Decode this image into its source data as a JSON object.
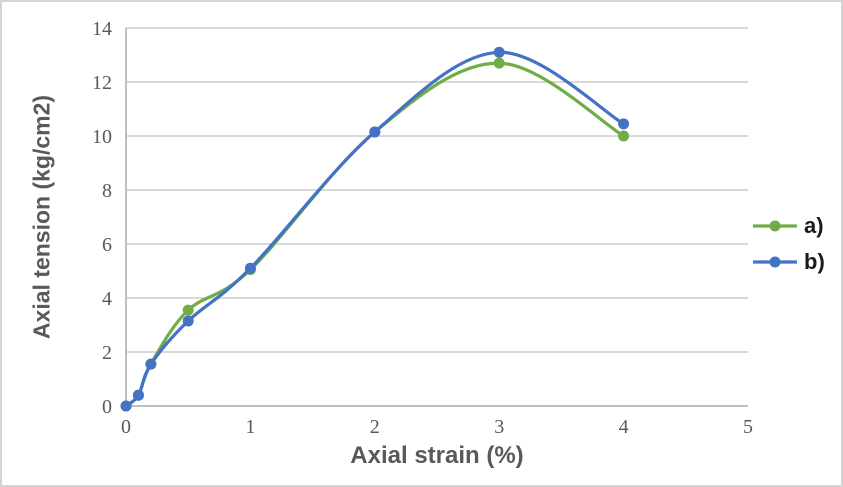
{
  "figure": {
    "background": "#ffffff",
    "border_color": "#d4d4d4"
  },
  "chart_data": {
    "type": "line",
    "x": [
      0,
      0.1,
      0.2,
      0.5,
      1,
      2,
      3,
      4
    ],
    "series": [
      {
        "name": "a)",
        "color": "#70AD47",
        "values": [
          0,
          0.4,
          1.55,
          3.55,
          5.05,
          10.15,
          12.7,
          10.0
        ]
      },
      {
        "name": "b)",
        "color": "#4472C4",
        "values": [
          0,
          0.4,
          1.55,
          3.15,
          5.1,
          10.15,
          13.1,
          10.45
        ]
      }
    ],
    "xlabel": "Axial strain (%)",
    "ylabel": "Axial tension (kg/cm2)",
    "xlim": [
      0,
      5
    ],
    "ylim": [
      0,
      14
    ],
    "x_ticks": [
      0,
      1,
      2,
      3,
      4,
      5
    ],
    "y_ticks": [
      0,
      2,
      4,
      6,
      8,
      10,
      12,
      14
    ],
    "grid": "horizontal",
    "legend_position": "right",
    "smooth_lines": true,
    "marker": "circle"
  },
  "style": {
    "gridline_color": "#d9d9d9",
    "axis_line_color": "#bfbfbf",
    "tick_text_color": "#595959",
    "axis_title_color": "#595959",
    "legend_text_color": "#1a1a1a"
  }
}
